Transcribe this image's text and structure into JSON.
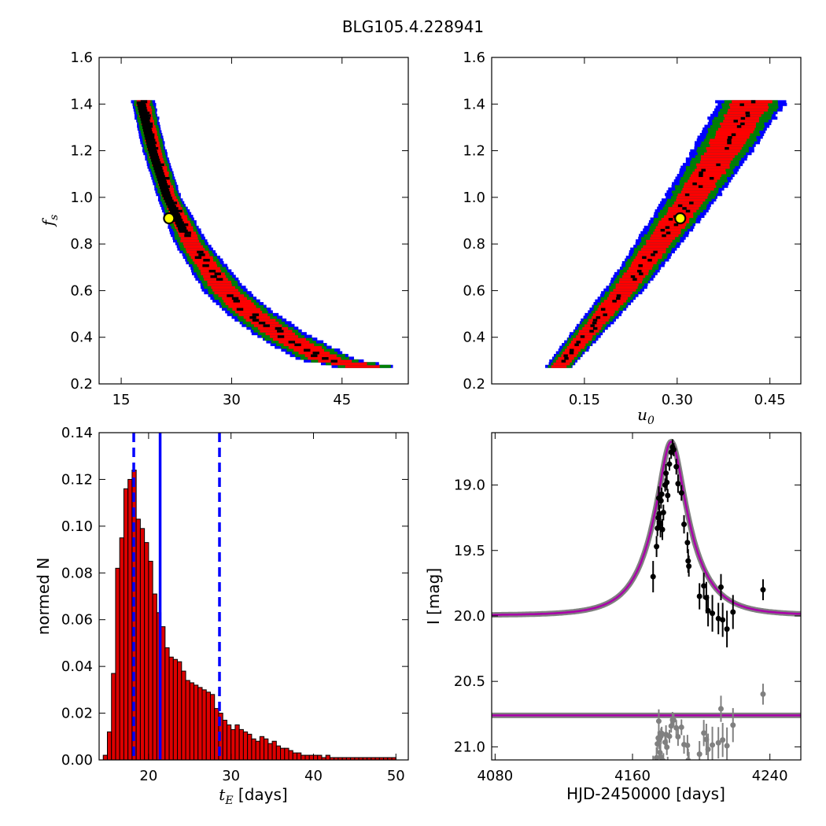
{
  "figure_title": "BLG105.4.228941",
  "colors": {
    "sigma1": "#000000",
    "sigma2": "#ff0000",
    "sigma3": "#008000",
    "outer": "#0000ff",
    "best_marker_fill": "#ffff00",
    "hist_bar": "#dd0000",
    "hist_lines": "#0000ff",
    "model_curve": "#aa00aa",
    "model_band": "#808080",
    "data_points": "#000000",
    "residual_points": "#808080"
  },
  "chart_data": [
    {
      "type": "heatmap",
      "panel": "top-left",
      "xlabel": "",
      "ylabel": "f_s",
      "xlim": [
        12,
        54
      ],
      "ylim": [
        0.2,
        1.6
      ],
      "xticks": [
        "15",
        "30",
        "45"
      ],
      "yticks": [
        "0.2",
        "0.4",
        "0.6",
        "0.8",
        "1.0",
        "1.2",
        "1.4",
        "1.6"
      ],
      "confidence_regions": [
        "1-sigma (black)",
        "2-sigma (red)",
        "3-sigma (green)",
        "outer (blue)"
      ],
      "ridge_fs": [
        1.4,
        1.2,
        1.0,
        0.8,
        0.6,
        0.5,
        0.4,
        0.3,
        0.27
      ],
      "ridge_tE": [
        18.0,
        19.5,
        21.5,
        24.5,
        29.0,
        32.5,
        37.0,
        43.0,
        48.0
      ],
      "best_fit": {
        "x": 21.5,
        "y": 0.91
      }
    },
    {
      "type": "heatmap",
      "panel": "top-right",
      "xlabel": "u_0",
      "ylabel": "",
      "xlim": [
        0.0,
        0.5
      ],
      "ylim": [
        0.2,
        1.6
      ],
      "xticks": [
        "0.15",
        "0.30",
        "0.45"
      ],
      "yticks": [
        "0.2",
        "0.4",
        "0.6",
        "0.8",
        "1.0",
        "1.2",
        "1.4",
        "1.6"
      ],
      "confidence_regions": [
        "1-sigma (black)",
        "2-sigma (red)",
        "3-sigma (green)",
        "outer (blue)"
      ],
      "ridge_fs": [
        0.27,
        0.4,
        0.6,
        0.8,
        1.0,
        1.2,
        1.4
      ],
      "ridge_u0": [
        0.11,
        0.15,
        0.215,
        0.27,
        0.325,
        0.375,
        0.42
      ],
      "best_fit": {
        "x": 0.305,
        "y": 0.91
      }
    },
    {
      "type": "bar",
      "panel": "bottom-left",
      "xlabel": "t_E [days]",
      "ylabel": "normed N",
      "xlim": [
        14,
        51.5
      ],
      "ylim": [
        0,
        0.14
      ],
      "xticks": [
        "20",
        "30",
        "40",
        "50"
      ],
      "yticks": [
        "0.00",
        "0.02",
        "0.04",
        "0.06",
        "0.08",
        "0.10",
        "0.12",
        "0.14"
      ],
      "bin_start": 14.5,
      "bin_width": 0.5,
      "values": [
        0.002,
        0.012,
        0.037,
        0.082,
        0.095,
        0.116,
        0.12,
        0.124,
        0.103,
        0.099,
        0.093,
        0.085,
        0.071,
        0.063,
        0.057,
        0.048,
        0.044,
        0.043,
        0.042,
        0.038,
        0.034,
        0.033,
        0.032,
        0.031,
        0.03,
        0.029,
        0.028,
        0.022,
        0.02,
        0.017,
        0.015,
        0.013,
        0.015,
        0.013,
        0.012,
        0.011,
        0.009,
        0.008,
        0.01,
        0.009,
        0.007,
        0.008,
        0.006,
        0.005,
        0.005,
        0.004,
        0.003,
        0.003,
        0.002,
        0.002,
        0.002,
        0.002,
        0.002,
        0.001,
        0.002,
        0.001,
        0.001,
        0.001,
        0.001,
        0.001,
        0.001,
        0.001,
        0.001,
        0.001,
        0.001,
        0.001,
        0.001,
        0.001,
        0.001,
        0.001,
        0.001
      ],
      "median_line": 21.4,
      "interval_lines": [
        18.2,
        28.6
      ]
    },
    {
      "type": "line",
      "panel": "bottom-right",
      "xlabel": "HJD-2450000 [days]",
      "ylabel": "I [mag]",
      "xlim": [
        4078,
        4258
      ],
      "ylim": [
        21.1,
        18.6
      ],
      "xticks": [
        "4080",
        "4160",
        "4240"
      ],
      "yticks": [
        "19.0",
        "19.5",
        "20.0",
        "20.5",
        "21.0"
      ],
      "model": {
        "t0": 4182.5,
        "tE": 21.5,
        "u0": 0.305,
        "baseline": 19.995
      },
      "residual_baseline": 20.76,
      "observations": [
        {
          "t": 4172.0,
          "mag": 19.7,
          "err": 0.12
        },
        {
          "t": 4174.0,
          "mag": 19.47,
          "err": 0.08
        },
        {
          "t": 4174.5,
          "mag": 19.33,
          "err": 0.06
        },
        {
          "t": 4175.0,
          "mag": 19.25,
          "err": 0.05
        },
        {
          "t": 4175.3,
          "mag": 19.1,
          "err": 0.09
        },
        {
          "t": 4175.6,
          "mag": 19.22,
          "err": 0.07
        },
        {
          "t": 4176.0,
          "mag": 19.29,
          "err": 0.05
        },
        {
          "t": 4176.3,
          "mag": 19.3,
          "err": 0.1
        },
        {
          "t": 4176.6,
          "mag": 19.12,
          "err": 0.06
        },
        {
          "t": 4177.0,
          "mag": 19.07,
          "err": 0.05
        },
        {
          "t": 4177.4,
          "mag": 19.34,
          "err": 0.08
        },
        {
          "t": 4178.0,
          "mag": 19.21,
          "err": 0.06
        },
        {
          "t": 4179.0,
          "mag": 19.0,
          "err": 0.05
        },
        {
          "t": 4179.5,
          "mag": 18.91,
          "err": 0.07
        },
        {
          "t": 4180.0,
          "mag": 18.98,
          "err": 0.06
        },
        {
          "t": 4180.5,
          "mag": 19.08,
          "err": 0.05
        },
        {
          "t": 4181.5,
          "mag": 18.84,
          "err": 0.05
        },
        {
          "t": 4182.5,
          "mag": 18.75,
          "err": 0.05
        },
        {
          "t": 4183.3,
          "mag": 18.71,
          "err": 0.06
        },
        {
          "t": 4184.0,
          "mag": 18.73,
          "err": 0.05
        },
        {
          "t": 4185.5,
          "mag": 18.86,
          "err": 0.06
        },
        {
          "t": 4186.5,
          "mag": 18.99,
          "err": 0.07
        },
        {
          "t": 4188.5,
          "mag": 19.06,
          "err": 0.06
        },
        {
          "t": 4190.0,
          "mag": 19.3,
          "err": 0.07
        },
        {
          "t": 4192.0,
          "mag": 19.44,
          "err": 0.08
        },
        {
          "t": 4192.4,
          "mag": 19.58,
          "err": 0.09
        },
        {
          "t": 4192.8,
          "mag": 19.62,
          "err": 0.08
        },
        {
          "t": 4199.0,
          "mag": 19.85,
          "err": 0.1
        },
        {
          "t": 4201.5,
          "mag": 19.77,
          "err": 0.1
        },
        {
          "t": 4203.0,
          "mag": 19.86,
          "err": 0.12
        },
        {
          "t": 4204.0,
          "mag": 19.96,
          "err": 0.12
        },
        {
          "t": 4206.5,
          "mag": 19.98,
          "err": 0.14
        },
        {
          "t": 4210.0,
          "mag": 20.02,
          "err": 0.12
        },
        {
          "t": 4211.5,
          "mag": 19.78,
          "err": 0.1
        },
        {
          "t": 4212.5,
          "mag": 20.03,
          "err": 0.13
        },
        {
          "t": 4215.0,
          "mag": 20.1,
          "err": 0.14
        },
        {
          "t": 4218.5,
          "mag": 19.97,
          "err": 0.13
        },
        {
          "t": 4236.0,
          "mag": 19.8,
          "err": 0.08
        }
      ]
    }
  ]
}
